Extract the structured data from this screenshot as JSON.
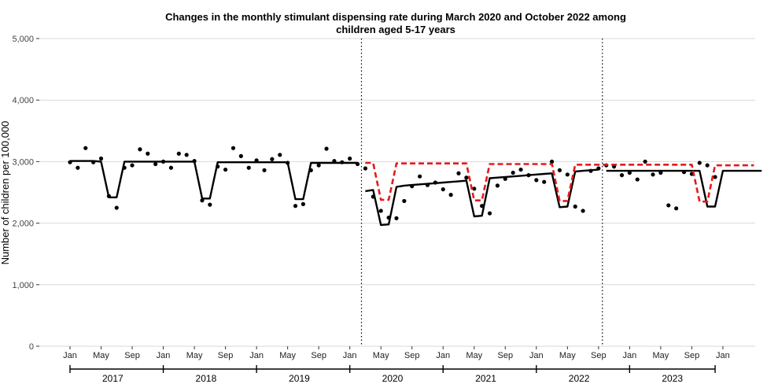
{
  "chart_data": {
    "type": "line",
    "title_lines": [
      "Changes in the monthly stimulant dispensing rate during March 2020 and October 2022 among",
      "children aged 5-17 years"
    ],
    "xlabel": "",
    "ylabel": "Number of children per 100,000",
    "ylim": [
      0,
      5000
    ],
    "yticks": [
      0,
      1000,
      2000,
      3000,
      4000,
      5000
    ],
    "ytick_labels": [
      "0",
      "1,000",
      "2,000",
      "3,000",
      "4,000",
      "5,000"
    ],
    "xlim": [
      "2017-01",
      "2023-12"
    ],
    "xtick_labels": [
      "Jan",
      "May",
      "Sep",
      "Jan",
      "May",
      "Sep",
      "Jan",
      "May",
      "Sep",
      "Jan",
      "May",
      "Sep",
      "Jan",
      "May",
      "Sep",
      "Jan",
      "May",
      "Sep",
      "Jan",
      "May",
      "Sep",
      "Jan"
    ],
    "xtick_months": [
      "2017-01",
      "2017-05",
      "2017-09",
      "2018-01",
      "2018-05",
      "2018-09",
      "2019-01",
      "2019-05",
      "2019-09",
      "2020-01",
      "2020-05",
      "2020-09",
      "2021-01",
      "2021-05",
      "2021-09",
      "2022-01",
      "2022-05",
      "2022-09",
      "2023-01",
      "2023-05",
      "2023-09",
      "2024-01"
    ],
    "year_labels": [
      "2017",
      "2018",
      "2019",
      "2020",
      "2021",
      "2022",
      "2023"
    ],
    "grid": true,
    "legend": "none",
    "vlines": [
      "2020-03",
      "2022-10"
    ],
    "series": [
      {
        "style": "points",
        "color": "#000000",
        "x_start": "2017-01",
        "values": [
          2990,
          2900,
          3220,
          2990,
          3050,
          2440,
          2250,
          2900,
          2940,
          3200,
          3130,
          2960,
          3000,
          2900,
          3130,
          3110,
          3010,
          2370,
          2300,
          2920,
          2870,
          3220,
          3090,
          2900,
          3020,
          2860,
          3040,
          3110,
          2980,
          2280,
          2310,
          2860,
          2940,
          3210,
          3010,
          2990,
          3050,
          2960,
          2890,
          2430,
          2200,
          2090,
          2080,
          2360,
          2600,
          2760,
          2620,
          2660,
          2550,
          2460,
          2810,
          2740,
          2560,
          2280,
          2160,
          2610,
          2720,
          2820,
          2870,
          2780,
          2700,
          2670,
          3000,
          2860,
          2790,
          2270,
          2200,
          2850,
          2890,
          2940,
          2920,
          2780,
          2820,
          2710,
          3000,
          2790,
          2820,
          2290,
          2240,
          2830,
          2800,
          2980,
          2940,
          2750
        ]
      },
      {
        "style": "solid",
        "color": "#000000",
        "x_start": "2017-01",
        "values": [
          3010,
          3010,
          3010,
          3010,
          3000,
          2420,
          2420,
          3000,
          3000,
          3000,
          3000,
          3000,
          3000,
          3000,
          3000,
          3000,
          3000,
          2400,
          2400,
          2990,
          2990,
          2990,
          2990,
          2990,
          2990,
          2990,
          2990,
          2990,
          2990,
          2390,
          2390,
          2980,
          2980,
          2980,
          2980,
          2980,
          2980,
          2980
        ]
      },
      {
        "style": "solid",
        "color": "#000000",
        "x_start": "2020-03",
        "values": [
          2520,
          2540,
          1970,
          1980,
          2590,
          2610,
          2620,
          2630,
          2640,
          2650,
          2660,
          2670,
          2680,
          2690,
          2110,
          2120,
          2730,
          2740,
          2750,
          2760,
          2770,
          2780,
          2790,
          2800,
          2810,
          2260,
          2270,
          2840,
          2850,
          2860,
          2870
        ]
      },
      {
        "style": "solid",
        "color": "#000000",
        "x_start": "2022-10",
        "values": [
          2850,
          2850,
          2850,
          2850,
          2850,
          2850,
          2850,
          2850,
          2850,
          2850,
          2850,
          2850,
          2850,
          2270,
          2270,
          2850,
          2850,
          2850,
          2850,
          2850,
          2850
        ]
      },
      {
        "style": "dashed",
        "color": "#e41a1c",
        "x_start": "2020-03",
        "values": [
          2980,
          2980,
          2380,
          2380,
          2970,
          2970,
          2970,
          2970,
          2970,
          2970,
          2970,
          2970,
          2970,
          2970,
          2370,
          2370,
          2960,
          2960,
          2960,
          2960,
          2960,
          2960,
          2960,
          2960,
          2960,
          2360,
          2360,
          2950,
          2950,
          2950,
          2950,
          2950,
          2950,
          2950,
          2950,
          2950,
          2950,
          2950,
          2950,
          2950,
          2950,
          2950,
          2950,
          2350,
          2350,
          2940,
          2940,
          2940,
          2940,
          2940,
          2940
        ]
      }
    ]
  }
}
